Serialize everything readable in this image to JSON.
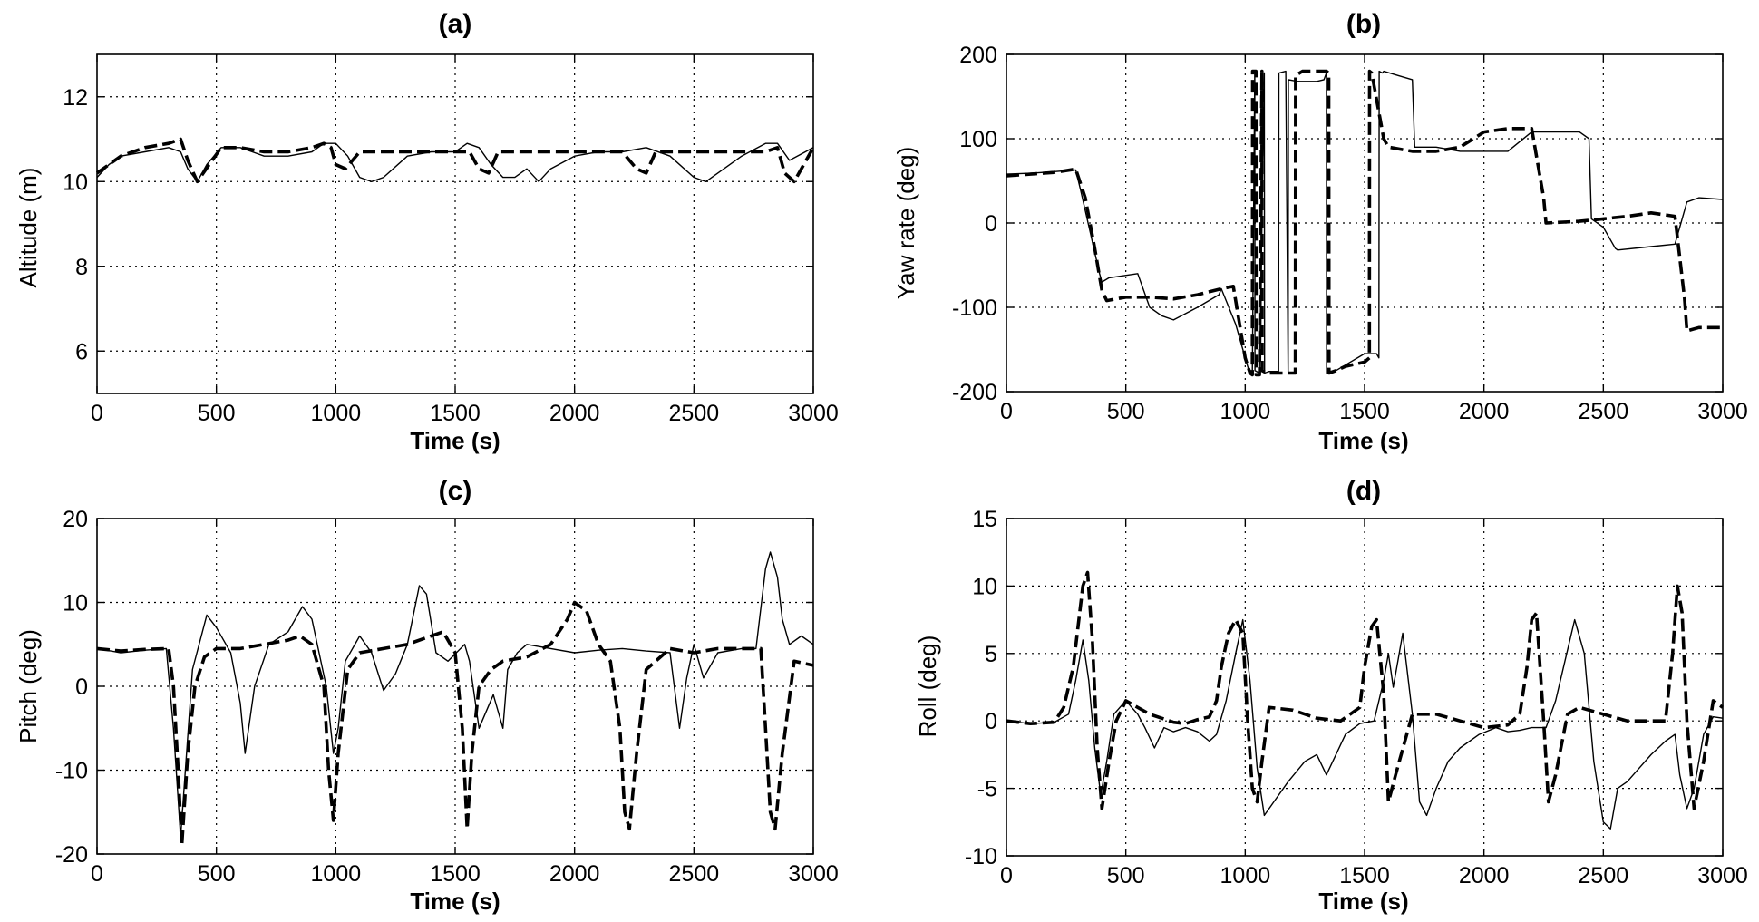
{
  "chart_data": [
    {
      "type": "line",
      "panel": "(a)",
      "title": "(a)",
      "xlabel": "Time (s)",
      "ylabel": "Altitude (m)",
      "xlim": [
        0,
        3000
      ],
      "ylim": [
        5,
        13
      ],
      "xticks": [
        0,
        500,
        1000,
        1500,
        2000,
        2500,
        3000
      ],
      "yticks": [
        6,
        8,
        10,
        12
      ],
      "grid": true,
      "series": [
        {
          "name": "solid",
          "style": "solid",
          "x": [
            0,
            50,
            100,
            200,
            300,
            350,
            380,
            420,
            460,
            520,
            600,
            650,
            700,
            800,
            900,
            950,
            1000,
            1050,
            1100,
            1150,
            1200,
            1300,
            1400,
            1500,
            1550,
            1600,
            1650,
            1700,
            1750,
            1800,
            1850,
            1900,
            2000,
            2100,
            2200,
            2300,
            2400,
            2500,
            2550,
            2600,
            2700,
            2800,
            2850,
            2900,
            3000
          ],
          "y": [
            10.1,
            10.4,
            10.6,
            10.7,
            10.8,
            10.7,
            10.3,
            10.0,
            10.4,
            10.8,
            10.8,
            10.7,
            10.6,
            10.6,
            10.7,
            10.9,
            10.9,
            10.6,
            10.1,
            10.0,
            10.1,
            10.6,
            10.7,
            10.7,
            10.9,
            10.8,
            10.4,
            10.1,
            10.1,
            10.3,
            10.0,
            10.3,
            10.6,
            10.7,
            10.7,
            10.8,
            10.6,
            10.1,
            10.0,
            10.2,
            10.6,
            10.9,
            10.9,
            10.5,
            10.8
          ]
        },
        {
          "name": "dashed",
          "style": "dashed",
          "x": [
            0,
            100,
            200,
            300,
            350,
            380,
            420,
            470,
            520,
            600,
            700,
            800,
            900,
            950,
            980,
            1000,
            1040,
            1100,
            1300,
            1500,
            1560,
            1600,
            1640,
            1680,
            1800,
            2000,
            2100,
            2200,
            2260,
            2300,
            2340,
            2400,
            2600,
            2800,
            2850,
            2880,
            2920,
            2960,
            3000
          ],
          "y": [
            10.2,
            10.6,
            10.8,
            10.9,
            11.0,
            10.5,
            10.0,
            10.4,
            10.8,
            10.8,
            10.7,
            10.7,
            10.8,
            10.9,
            10.8,
            10.4,
            10.3,
            10.7,
            10.7,
            10.7,
            10.7,
            10.3,
            10.2,
            10.7,
            10.7,
            10.7,
            10.7,
            10.7,
            10.3,
            10.2,
            10.7,
            10.7,
            10.7,
            10.7,
            10.8,
            10.2,
            10.0,
            10.4,
            10.8
          ]
        }
      ]
    },
    {
      "type": "line",
      "panel": "(b)",
      "title": "(b)",
      "xlabel": "Time (s)",
      "ylabel": "Yaw rate (deg)",
      "xlim": [
        0,
        3000
      ],
      "ylim": [
        -200,
        200
      ],
      "xticks": [
        0,
        500,
        1000,
        1500,
        2000,
        2500,
        3000
      ],
      "yticks": [
        -200,
        -100,
        0,
        100,
        200
      ],
      "grid": true,
      "series": [
        {
          "name": "solid",
          "style": "solid",
          "x": [
            0,
            100,
            200,
            290,
            310,
            350,
            390,
            400,
            430,
            550,
            600,
            650,
            700,
            800,
            890,
            900,
            960,
            1010,
            1020,
            1030,
            1040,
            1041,
            1060,
            1080,
            1081,
            1100,
            1140,
            1141,
            1170,
            1180,
            1181,
            1220,
            1300,
            1330,
            1340,
            1341,
            1380,
            1500,
            1550,
            1560,
            1561,
            1575,
            1580,
            1640,
            1700,
            1710,
            1800,
            1900,
            2000,
            2100,
            2200,
            2300,
            2400,
            2440,
            2450,
            2500,
            2550,
            2560,
            2700,
            2800,
            2850,
            2900,
            3000
          ],
          "y": [
            58,
            59,
            61,
            63,
            40,
            -10,
            -60,
            -70,
            -65,
            -60,
            -100,
            -110,
            -115,
            -100,
            -85,
            -78,
            -120,
            -170,
            -178,
            -178,
            180,
            -175,
            -178,
            178,
            -178,
            -176,
            -176,
            178,
            180,
            -178,
            170,
            168,
            168,
            170,
            178,
            -178,
            -175,
            -155,
            -155,
            -160,
            180,
            178,
            180,
            175,
            170,
            90,
            90,
            85,
            85,
            85,
            108,
            108,
            108,
            100,
            5,
            -5,
            -30,
            -32,
            -28,
            -25,
            25,
            30,
            28
          ]
        },
        {
          "name": "dashed",
          "style": "dashed",
          "x": [
            0,
            100,
            200,
            290,
            330,
            370,
            400,
            420,
            500,
            600,
            700,
            800,
            900,
            950,
            1000,
            1020,
            1030,
            1031,
            1045,
            1046,
            1060,
            1070,
            1071,
            1090,
            1200,
            1210,
            1211,
            1240,
            1300,
            1340,
            1350,
            1351,
            1380,
            1420,
            1500,
            1520,
            1521,
            1530,
            1580,
            1600,
            1700,
            1800,
            1900,
            2000,
            2100,
            2200,
            2250,
            2260,
            2400,
            2500,
            2600,
            2700,
            2750,
            2800,
            2840,
            2850,
            2900,
            3000
          ],
          "y": [
            56,
            58,
            60,
            64,
            30,
            -30,
            -80,
            -92,
            -88,
            -88,
            -90,
            -85,
            -78,
            -75,
            -160,
            -178,
            -180,
            180,
            180,
            -180,
            -180,
            180,
            -175,
            -178,
            -178,
            -178,
            175,
            180,
            180,
            180,
            178,
            -178,
            -175,
            -170,
            -165,
            -160,
            180,
            178,
            100,
            90,
            85,
            85,
            90,
            108,
            112,
            112,
            30,
            0,
            2,
            5,
            8,
            12,
            10,
            8,
            -90,
            -128,
            -124,
            -124
          ]
        }
      ]
    },
    {
      "type": "line",
      "panel": "(c)",
      "title": "(c)",
      "xlabel": "Time (s)",
      "ylabel": "Pitch (deg)",
      "xlim": [
        0,
        3000
      ],
      "ylim": [
        -20,
        20
      ],
      "xticks": [
        0,
        500,
        1000,
        1500,
        2000,
        2500,
        3000
      ],
      "yticks": [
        -20,
        -10,
        0,
        10,
        20
      ],
      "grid": true,
      "series": [
        {
          "name": "solid",
          "style": "solid",
          "x": [
            0,
            100,
            200,
            290,
            320,
            350,
            400,
            460,
            500,
            560,
            600,
            620,
            660,
            720,
            800,
            860,
            900,
            960,
            990,
            1010,
            1040,
            1100,
            1150,
            1200,
            1250,
            1300,
            1350,
            1380,
            1420,
            1470,
            1540,
            1560,
            1600,
            1660,
            1700,
            1720,
            1760,
            1800,
            1900,
            2000,
            2100,
            2200,
            2300,
            2400,
            2440,
            2470,
            2500,
            2540,
            2600,
            2700,
            2760,
            2800,
            2820,
            2850,
            2870,
            2900,
            2950,
            3000
          ],
          "y": [
            4.5,
            4.0,
            4.3,
            4.5,
            -5.0,
            -18.0,
            2.0,
            8.5,
            7.0,
            4.0,
            -2.0,
            -8.0,
            0.0,
            5.0,
            6.5,
            9.5,
            8.0,
            0.0,
            -8.0,
            -5.0,
            3.0,
            6.0,
            4.0,
            -0.5,
            1.5,
            5.0,
            12.0,
            11.0,
            4.0,
            3.0,
            5.0,
            3.0,
            -5.0,
            -1.0,
            -5.0,
            2.0,
            4.0,
            5.0,
            4.5,
            4.0,
            4.3,
            4.5,
            4.2,
            4.0,
            -5.0,
            1.0,
            5.0,
            1.0,
            4.0,
            4.5,
            4.5,
            14.0,
            16.0,
            13.0,
            8.0,
            5.0,
            6.0,
            5.0
          ]
        },
        {
          "name": "dashed",
          "style": "dashed",
          "x": [
            0,
            100,
            200,
            300,
            320,
            340,
            355,
            380,
            410,
            450,
            500,
            600,
            700,
            800,
            850,
            900,
            950,
            970,
            990,
            1010,
            1050,
            1100,
            1200,
            1300,
            1400,
            1450,
            1500,
            1530,
            1550,
            1570,
            1600,
            1650,
            1700,
            1800,
            1900,
            1970,
            2000,
            2050,
            2100,
            2150,
            2190,
            2210,
            2230,
            2260,
            2300,
            2400,
            2500,
            2600,
            2700,
            2780,
            2800,
            2820,
            2840,
            2870,
            2920,
            3000
          ],
          "y": [
            4.5,
            4.2,
            4.4,
            4.5,
            0.0,
            -10.0,
            -19.0,
            -8.0,
            0.0,
            3.5,
            4.5,
            4.5,
            5.0,
            5.5,
            6.0,
            5.0,
            0.0,
            -10.0,
            -16.0,
            -8.0,
            2.0,
            4.0,
            4.5,
            5.0,
            6.0,
            6.5,
            4.0,
            -5.0,
            -17.0,
            -8.0,
            0.0,
            2.0,
            3.0,
            3.5,
            5.0,
            8.0,
            10.0,
            9.0,
            5.0,
            3.0,
            -5.0,
            -15.0,
            -17.0,
            -8.0,
            2.0,
            4.5,
            4.0,
            4.5,
            4.5,
            4.5,
            -5.0,
            -15.0,
            -17.0,
            -8.0,
            3.0,
            2.5
          ]
        }
      ]
    },
    {
      "type": "line",
      "panel": "(d)",
      "title": "(d)",
      "xlabel": "Time (s)",
      "ylabel": "Roll (deg)",
      "xlim": [
        0,
        3000
      ],
      "ylim": [
        -10,
        15
      ],
      "xticks": [
        0,
        500,
        1000,
        1500,
        2000,
        2500,
        3000
      ],
      "yticks": [
        -10,
        -5,
        0,
        5,
        10,
        15
      ],
      "grid": true,
      "series": [
        {
          "name": "solid",
          "style": "solid",
          "x": [
            0,
            100,
            200,
            260,
            290,
            320,
            345,
            370,
            395,
            420,
            450,
            500,
            550,
            580,
            620,
            660,
            700,
            750,
            800,
            850,
            880,
            920,
            960,
            990,
            1020,
            1050,
            1080,
            1120,
            1180,
            1250,
            1300,
            1340,
            1380,
            1420,
            1480,
            1540,
            1580,
            1600,
            1620,
            1640,
            1660,
            1700,
            1730,
            1760,
            1800,
            1850,
            1900,
            1980,
            2050,
            2100,
            2150,
            2200,
            2260,
            2300,
            2340,
            2380,
            2420,
            2460,
            2500,
            2530,
            2560,
            2600,
            2650,
            2700,
            2760,
            2800,
            2820,
            2850,
            2880,
            2920,
            2960,
            3000
          ],
          "y": [
            0.0,
            -0.2,
            -0.1,
            0.5,
            3.0,
            6.0,
            3.0,
            -2.0,
            -5.5,
            -3.0,
            0.5,
            1.5,
            0.5,
            -0.5,
            -2.0,
            -0.5,
            -0.8,
            -0.5,
            -0.8,
            -1.5,
            -1.0,
            1.5,
            5.0,
            7.5,
            3.0,
            -3.5,
            -7.0,
            -6.0,
            -4.5,
            -3.0,
            -2.5,
            -4.0,
            -2.5,
            -1.0,
            -0.2,
            0.0,
            3.0,
            5.0,
            2.5,
            4.5,
            6.5,
            0.5,
            -6.0,
            -7.0,
            -5.0,
            -3.0,
            -2.0,
            -1.0,
            -0.5,
            -0.8,
            -0.7,
            -0.5,
            -0.5,
            1.5,
            4.5,
            7.5,
            5.0,
            -3.0,
            -7.5,
            -8.0,
            -5.0,
            -4.5,
            -3.5,
            -2.5,
            -1.5,
            -1.0,
            -4.0,
            -6.5,
            -5.0,
            -1.0,
            0.3,
            0.2
          ]
        },
        {
          "name": "dashed",
          "style": "dashed",
          "x": [
            0,
            100,
            200,
            240,
            280,
            300,
            320,
            340,
            360,
            380,
            400,
            430,
            460,
            500,
            550,
            600,
            650,
            700,
            750,
            800,
            850,
            880,
            900,
            930,
            960,
            990,
            1010,
            1030,
            1050,
            1070,
            1100,
            1200,
            1300,
            1400,
            1480,
            1500,
            1530,
            1550,
            1580,
            1600,
            1630,
            1700,
            1800,
            1900,
            2000,
            2100,
            2150,
            2180,
            2200,
            2220,
            2250,
            2270,
            2300,
            2350,
            2400,
            2500,
            2600,
            2700,
            2760,
            2790,
            2810,
            2830,
            2850,
            2880,
            2920,
            2960,
            3000
          ],
          "y": [
            0.0,
            -0.2,
            -0.1,
            1.0,
            4.0,
            7.0,
            10.0,
            11.0,
            6.0,
            -2.0,
            -6.5,
            -3.0,
            0.0,
            1.5,
            1.0,
            0.5,
            0.2,
            -0.1,
            -0.2,
            0.1,
            0.3,
            1.5,
            4.0,
            6.5,
            7.5,
            6.5,
            0.0,
            -5.0,
            -6.0,
            -3.0,
            1.0,
            0.8,
            0.2,
            0.0,
            1.0,
            4.0,
            7.0,
            7.5,
            2.0,
            -6.0,
            -4.0,
            0.5,
            0.5,
            0.0,
            -0.5,
            -0.3,
            0.5,
            4.0,
            7.5,
            8.0,
            0.0,
            -6.0,
            -4.0,
            0.5,
            1.0,
            0.5,
            0.0,
            0.0,
            0.0,
            5.0,
            10.0,
            8.0,
            0.0,
            -6.5,
            -3.0,
            1.5,
            1.0
          ]
        }
      ]
    }
  ]
}
